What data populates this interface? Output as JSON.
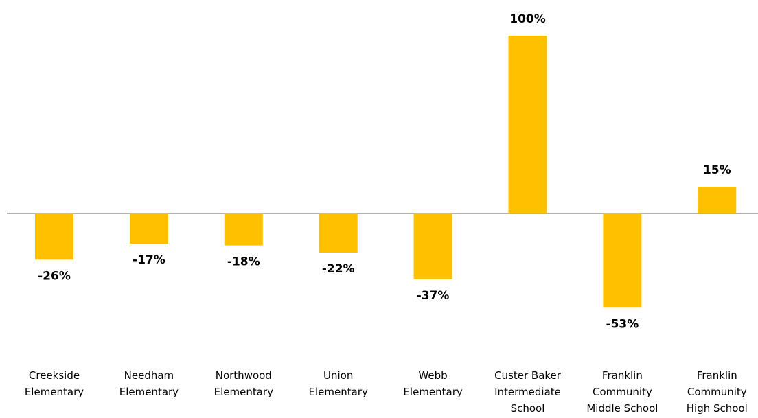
{
  "chart_data": {
    "type": "bar",
    "categories": [
      "Creekside Elementary",
      "Needham Elementary",
      "Northwood Elementary",
      "Union Elementary",
      "Webb Elementary",
      "Custer Baker Intermediate School",
      "Franklin Community Middle School",
      "Franklin Community High School"
    ],
    "values": [
      -26,
      -17,
      -18,
      -22,
      -37,
      100,
      -53,
      15
    ],
    "value_labels": [
      "-26%",
      "-17%",
      "-18%",
      "-22%",
      "-37%",
      "100%",
      "-53%",
      "15%"
    ],
    "color": "#ffc000"
  }
}
